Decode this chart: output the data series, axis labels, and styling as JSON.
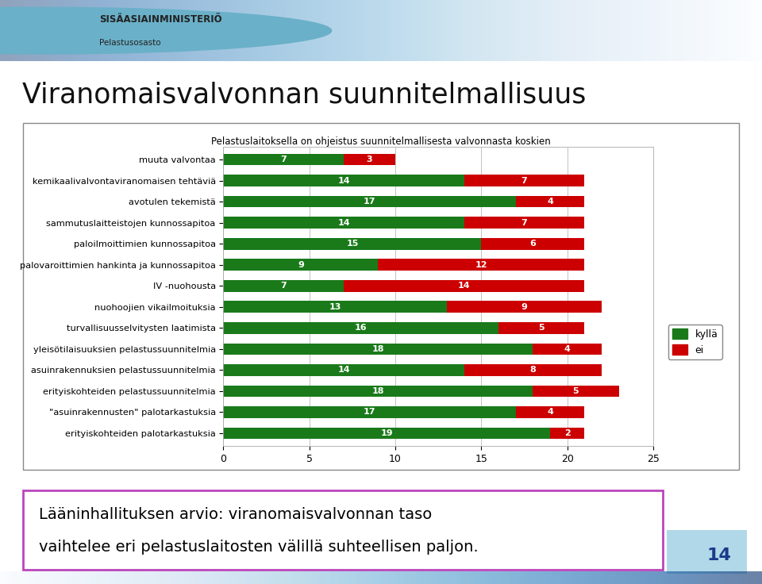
{
  "title": "Viranomaisvalvonnan suunnitelmallisuus",
  "subtitle": "Pelastuslaitoksella on ohjeistus suunnitelmallisesta valvonnasta koskien",
  "categories": [
    "muuta valvontaa",
    "kemikaalivalvontaviranomaisen tehtäviä",
    "avotulen tekemistä",
    "sammutuslaitteistojen kunnossapitoa",
    "paloilmoittimien kunnossapitoa",
    "palovaroittimien hankinta ja kunnossapitoa",
    "IV -nuohousta",
    "nuohoojien vikailmoituksia",
    "turvallisuusselvitysten laatimista",
    "yleisötilaisuuksien pelastussuunnitelmia",
    "asuinrakennuksien pelastussuunnitelmia",
    "erityiskohteiden pelastussuunnitelmia",
    "\"asuinrakennusten\" palotarkastuksia",
    "erityiskohteiden palotarkastuksia"
  ],
  "kylla_values": [
    7,
    14,
    17,
    14,
    15,
    9,
    7,
    13,
    16,
    18,
    14,
    18,
    17,
    19
  ],
  "ei_values": [
    3,
    7,
    4,
    7,
    6,
    12,
    14,
    9,
    5,
    4,
    8,
    5,
    4,
    2
  ],
  "kylla_color": "#1a7a1a",
  "ei_color": "#cc0000",
  "xlim": [
    0,
    25
  ],
  "xticks": [
    0,
    5,
    10,
    15,
    20,
    25
  ],
  "bar_height": 0.55,
  "bottom_text_line1": "Lääninhallituksen arvio: viranomaisvalvonnan taso",
  "bottom_text_line2": "vaihtelee eri pelastuslaitosten välillä suhteellisen paljon.",
  "page_number": "14",
  "header_line1": "SISÄASIAINMINISTERIÖ",
  "header_line2": "Pelastusosasto",
  "legend_kylla": "kyllä",
  "legend_ei": "ei",
  "chart_box_color": "#888888",
  "bottom_box_color": "#bb44bb",
  "page_bg_color": "#b0d8e8",
  "page_text_color": "#1a3a8a"
}
